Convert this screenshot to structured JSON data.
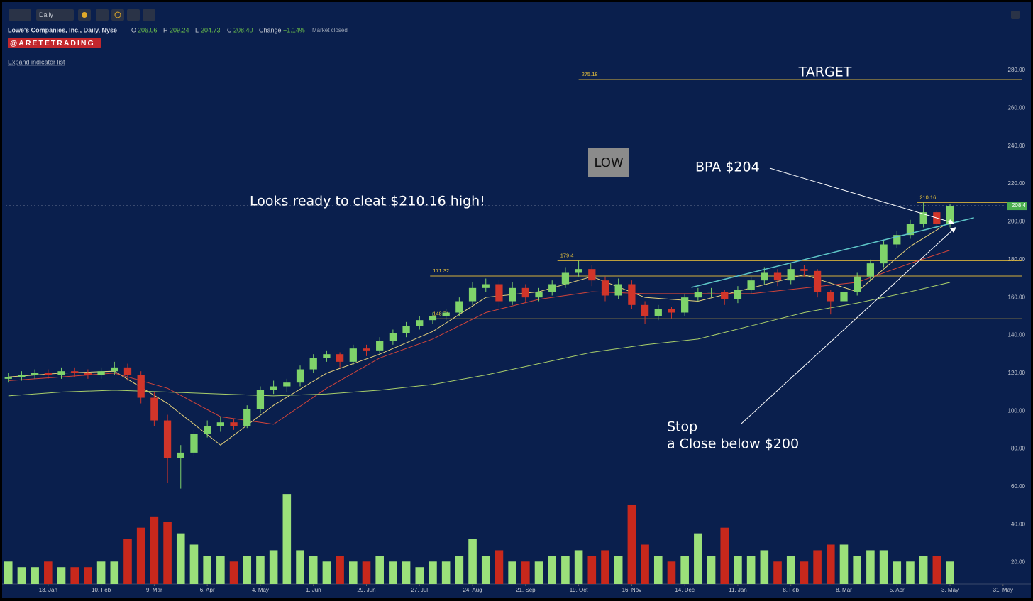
{
  "toolbar": {
    "interval": "Daily"
  },
  "header": {
    "symbol": "Lowe's Companies, Inc., Daily, Nyse",
    "o_label": "O",
    "open": "206.06",
    "h_label": "H",
    "high": "209.24",
    "l_label": "L",
    "low": "204.73",
    "c_label": "C",
    "close": "208.40",
    "change_label": "Change",
    "change": "+1.14%",
    "status": "Market closed",
    "badge": "@ARETETRADING",
    "expand": "Expand indicator list"
  },
  "chart_data": {
    "type": "candlestick",
    "annotations": {
      "target": "TARGET",
      "low": "LOW",
      "bpa": "BPA $204",
      "ready": "Looks ready to cleat $210.16 high!",
      "stop": "Stop",
      "stop_rule": "a Close below $200"
    },
    "xlim": [
      -0.2,
      76.4
    ],
    "xticks": [
      {
        "value": 3,
        "label": "13. Jan"
      },
      {
        "value": 7,
        "label": "10. Feb"
      },
      {
        "value": 11,
        "label": "9. Mar"
      },
      {
        "value": 15,
        "label": "6. Apr"
      },
      {
        "value": 19,
        "label": "4. May"
      },
      {
        "value": 23,
        "label": "1. Jun"
      },
      {
        "value": 27,
        "label": "29. Jun"
      },
      {
        "value": 31,
        "label": "27. Jul"
      },
      {
        "value": 35,
        "label": "24. Aug"
      },
      {
        "value": 39,
        "label": "21. Sep"
      },
      {
        "value": 43,
        "label": "19. Oct"
      },
      {
        "value": 47,
        "label": "16. Nov"
      },
      {
        "value": 51,
        "label": "14. Dec"
      },
      {
        "value": 55,
        "label": "11. Jan"
      },
      {
        "value": 59,
        "label": "8. Feb"
      },
      {
        "value": 63,
        "label": "8. Mar"
      },
      {
        "value": 67,
        "label": "5. Apr"
      },
      {
        "value": 71,
        "label": "3. May"
      },
      {
        "value": 75,
        "label": "31. May"
      }
    ],
    "ylim": [
      8.6,
      305.9
    ],
    "yticks": [
      {
        "value": 20,
        "label": "20.00"
      },
      {
        "value": 40,
        "label": "40.00"
      },
      {
        "value": 60,
        "label": "60.00"
      },
      {
        "value": 80,
        "label": "80.00"
      },
      {
        "value": 100,
        "label": "100.00"
      },
      {
        "value": 120,
        "label": "120.00"
      },
      {
        "value": 140,
        "label": "140.00"
      },
      {
        "value": 160,
        "label": "160.00"
      },
      {
        "value": 180,
        "label": "180.00"
      },
      {
        "value": 200,
        "label": "200.00"
      },
      {
        "value": 220,
        "label": "220.00"
      },
      {
        "value": 240,
        "label": "240.00"
      },
      {
        "value": 260,
        "label": "260.00"
      },
      {
        "value": 280,
        "label": "280.00"
      }
    ],
    "y2lim": [
      0,
      100
    ],
    "up_color": "#7fd36a",
    "down_color": "#d1352a",
    "candles": [
      [
        117,
        120,
        115,
        118
      ],
      [
        118,
        121,
        116,
        119
      ],
      [
        119,
        122,
        117,
        120
      ],
      [
        120,
        122,
        117,
        119
      ],
      [
        119,
        123,
        117,
        121
      ],
      [
        121,
        123,
        118,
        120
      ],
      [
        120,
        122,
        117,
        119
      ],
      [
        119,
        123,
        117,
        121
      ],
      [
        121,
        126,
        119,
        123
      ],
      [
        123,
        125,
        116,
        119
      ],
      [
        119,
        121,
        104,
        107
      ],
      [
        107,
        110,
        92,
        95
      ],
      [
        95,
        98,
        62,
        75
      ],
      [
        75,
        82,
        59,
        78
      ],
      [
        78,
        90,
        76,
        88
      ],
      [
        88,
        95,
        86,
        92
      ],
      [
        92,
        97,
        89,
        94
      ],
      [
        94,
        96,
        90,
        92
      ],
      [
        92,
        103,
        91,
        101
      ],
      [
        101,
        113,
        99,
        111
      ],
      [
        111,
        116,
        109,
        113
      ],
      [
        113,
        117,
        110,
        115
      ],
      [
        115,
        124,
        113,
        122
      ],
      [
        122,
        130,
        120,
        128
      ],
      [
        128,
        132,
        126,
        130
      ],
      [
        130,
        131,
        123,
        126
      ],
      [
        126,
        135,
        124,
        133
      ],
      [
        133,
        135,
        129,
        132
      ],
      [
        132,
        139,
        130,
        137
      ],
      [
        137,
        143,
        135,
        141
      ],
      [
        141,
        147,
        139,
        145
      ],
      [
        145,
        150,
        143,
        148
      ],
      [
        148,
        152,
        146,
        150
      ],
      [
        150,
        154,
        148,
        152
      ],
      [
        152,
        160,
        150,
        158
      ],
      [
        158,
        168,
        156,
        165
      ],
      [
        165,
        170,
        163,
        167
      ],
      [
        167,
        169,
        154,
        158
      ],
      [
        158,
        168,
        156,
        165
      ],
      [
        165,
        167,
        157,
        160
      ],
      [
        160,
        165,
        158,
        163
      ],
      [
        163,
        169,
        161,
        167
      ],
      [
        167,
        176,
        165,
        173
      ],
      [
        173,
        179.4,
        171,
        175
      ],
      [
        175,
        177,
        166,
        169
      ],
      [
        169,
        171,
        158,
        161
      ],
      [
        161,
        170,
        159,
        167
      ],
      [
        167,
        169,
        154,
        156
      ],
      [
        156,
        158,
        146,
        150
      ],
      [
        150,
        156,
        148,
        154
      ],
      [
        154,
        155,
        149,
        152
      ],
      [
        152,
        162,
        150,
        160
      ],
      [
        160,
        165,
        158,
        163
      ],
      [
        163,
        165,
        160,
        163
      ],
      [
        163,
        164,
        156,
        159
      ],
      [
        159,
        166,
        157,
        164
      ],
      [
        164,
        171,
        162,
        169
      ],
      [
        169,
        176,
        167,
        173
      ],
      [
        173,
        175,
        166,
        169
      ],
      [
        169,
        178,
        167,
        175
      ],
      [
        175,
        177,
        171,
        174
      ],
      [
        174,
        175,
        160,
        163
      ],
      [
        163,
        164,
        151,
        158
      ],
      [
        158,
        165,
        156,
        163
      ],
      [
        163,
        173,
        161,
        171
      ],
      [
        171,
        180,
        169,
        178
      ],
      [
        178,
        190,
        176,
        188
      ],
      [
        188,
        195,
        186,
        193
      ],
      [
        193,
        201,
        191,
        199
      ],
      [
        199,
        210.16,
        197,
        205
      ],
      [
        205,
        206,
        195,
        199
      ],
      [
        199,
        209.24,
        197,
        208.4
      ]
    ],
    "volumes": [
      4,
      3,
      3,
      4,
      3,
      3,
      3,
      4,
      4,
      8,
      10,
      12,
      11,
      9,
      7,
      5,
      5,
      4,
      5,
      5,
      6,
      16,
      6,
      5,
      4,
      5,
      4,
      4,
      5,
      4,
      4,
      3,
      4,
      4,
      5,
      8,
      5,
      6,
      4,
      4,
      4,
      5,
      5,
      6,
      5,
      6,
      5,
      14,
      7,
      5,
      4,
      5,
      9,
      5,
      10,
      5,
      5,
      6,
      4,
      5,
      4,
      6,
      7,
      7,
      5,
      6,
      6,
      4,
      4,
      5,
      5,
      4
    ],
    "ma_x": [
      0,
      4,
      8,
      12,
      16,
      20,
      24,
      28,
      32,
      36,
      40,
      44,
      48,
      52,
      56,
      60,
      64,
      68,
      71
    ],
    "moving_averages": [
      {
        "color": "#e6d27a",
        "values": [
          118,
          120,
          121,
          104,
          82,
          103,
          120,
          130,
          142,
          160,
          163,
          171,
          160,
          158,
          165,
          172,
          163,
          187,
          200
        ]
      },
      {
        "color": "#d2443a",
        "values": [
          116,
          118,
          120,
          112,
          97,
          93,
          112,
          128,
          138,
          152,
          159,
          163,
          162,
          162,
          162,
          165,
          168,
          178,
          185
        ]
      },
      {
        "color": "#a9cf6a",
        "values": [
          108,
          110,
          111,
          110,
          109,
          108,
          109,
          111,
          114,
          119,
          125,
          131,
          135,
          138,
          145,
          152,
          157,
          163,
          168
        ]
      }
    ],
    "levels": [
      {
        "value": 275.18,
        "start": 43
      },
      {
        "value": 210.16,
        "start": 68.5
      },
      {
        "value": 179.4,
        "start": 41.4
      },
      {
        "value": 171.32,
        "start": 31.8
      },
      {
        "value": 148.71,
        "start": 31.8
      }
    ],
    "level_color": "#d7b23a",
    "trendline": {
      "x": [
        51.5,
        72.8
      ],
      "values": [
        165.3,
        202.1
      ],
      "color": "#5ec6c8"
    },
    "last_price": 208.4
  }
}
